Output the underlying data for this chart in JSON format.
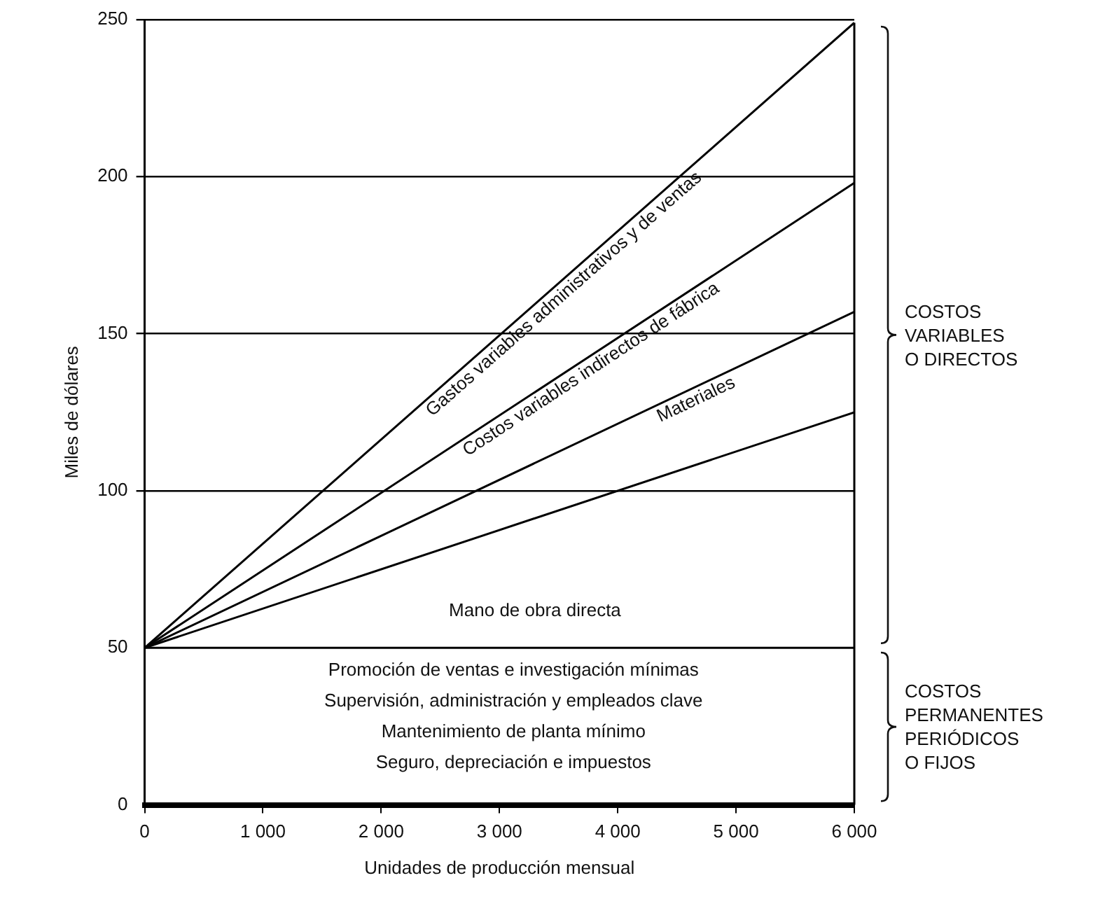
{
  "chart_data": {
    "type": "line",
    "xlabel": "Unidades de producción mensual",
    "ylabel": "Miles de dólares",
    "xlim": [
      0,
      6000
    ],
    "xticks": [
      0,
      {
        "value": 1000,
        "label": "1 000"
      },
      {
        "value": 2000,
        "label": "2 000"
      },
      {
        "value": 3000,
        "label": "3 000"
      },
      {
        "value": 4000,
        "label": "4 000"
      },
      {
        "value": 5000,
        "label": "5 000"
      },
      {
        "value": 6000,
        "label": "6 000"
      }
    ],
    "x": [
      0,
      6000
    ],
    "ylim": [
      0,
      250
    ],
    "yticks": [
      0,
      50,
      100,
      150,
      200,
      250
    ],
    "grid": "y",
    "legend": false,
    "marker": "none",
    "line_style": "solid",
    "series": [
      {
        "color": "#000000",
        "values": [
          50,
          50
        ]
      },
      {
        "name": "Mano de obra directa",
        "color": "#000000",
        "values": [
          50,
          125
        ]
      },
      {
        "name": "Materiales",
        "color": "#000000",
        "values": [
          50,
          157
        ]
      },
      {
        "name": "Costos variables indirectos de fábrica",
        "color": "#000000",
        "values": [
          50,
          198
        ]
      },
      {
        "name": "Gastos variables administrativos y de ventas",
        "color": "#000000",
        "values": [
          50,
          249
        ]
      }
    ],
    "ref_lines": [
      {
        "axis": "x",
        "value": 6000,
        "color": "#000000"
      }
    ],
    "annotations": [
      "Promoción de ventas e investigación mínimas",
      "Supervisión, administración y empleados clave",
      "Mantenimiento de planta mínimo",
      "Seguro, depreciación e impuestos",
      "COSTOS\nVARIABLES\nO DIRECTOS",
      "COSTOS\nPERMANENTES\nPERIÓDICOS\nO FIJOS"
    ]
  }
}
